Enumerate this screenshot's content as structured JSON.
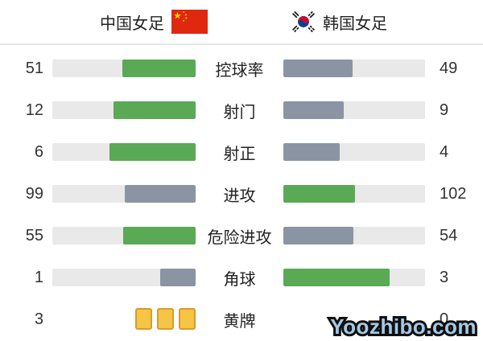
{
  "header": {
    "home_team": "中国女足",
    "away_team": "韩国女足",
    "home_flag": "china-flag",
    "away_flag": "south-korea-flag"
  },
  "stats": [
    {
      "label": "控球率",
      "home": 51,
      "away": 49,
      "display": "bar"
    },
    {
      "label": "射门",
      "home": 12,
      "away": 9,
      "display": "bar"
    },
    {
      "label": "射正",
      "home": 6,
      "away": 4,
      "display": "bar"
    },
    {
      "label": "进攻",
      "home": 99,
      "away": 102,
      "display": "bar"
    },
    {
      "label": "危险进攻",
      "home": 55,
      "away": 54,
      "display": "bar"
    },
    {
      "label": "角球",
      "home": 1,
      "away": 3,
      "display": "bar"
    },
    {
      "label": "黄牌",
      "home": 3,
      "away": 0,
      "display": "cards"
    }
  ],
  "colors": {
    "leader_fill": "#5aa955",
    "trailer_fill": "#8b94a3",
    "bar_bg": "#e9e9e9",
    "divider": "#e7e7e7",
    "card_fill": "#f6c545",
    "card_border": "#d99b2d",
    "watermark_blue": "#a5c9e6",
    "flag_red": "#de2910",
    "flag_yellow": "#ffde00",
    "taegeuk_red": "#c60c30",
    "taegeuk_blue": "#0f3e8c"
  },
  "watermark": {
    "text": "Yoozhibo.com"
  },
  "chart_data": {
    "type": "bar",
    "orientation": "horizontal-opposed",
    "categories": [
      "控球率",
      "射门",
      "射正",
      "进攻",
      "危险进攻",
      "角球",
      "黄牌"
    ],
    "series": [
      {
        "name": "中国女足",
        "values": [
          51,
          12,
          6,
          99,
          55,
          1,
          3
        ]
      },
      {
        "name": "韩国女足",
        "values": [
          49,
          9,
          4,
          102,
          54,
          3,
          0
        ]
      }
    ],
    "title": "",
    "xlabel": "",
    "ylabel": "",
    "legend_position": "top",
    "grid": false,
    "notes": "Each pair of bars is scaled so fill = value / (home+away); the leading side is green, the trailing side slate gray; yellow cards shown as card icons instead of a bar"
  }
}
